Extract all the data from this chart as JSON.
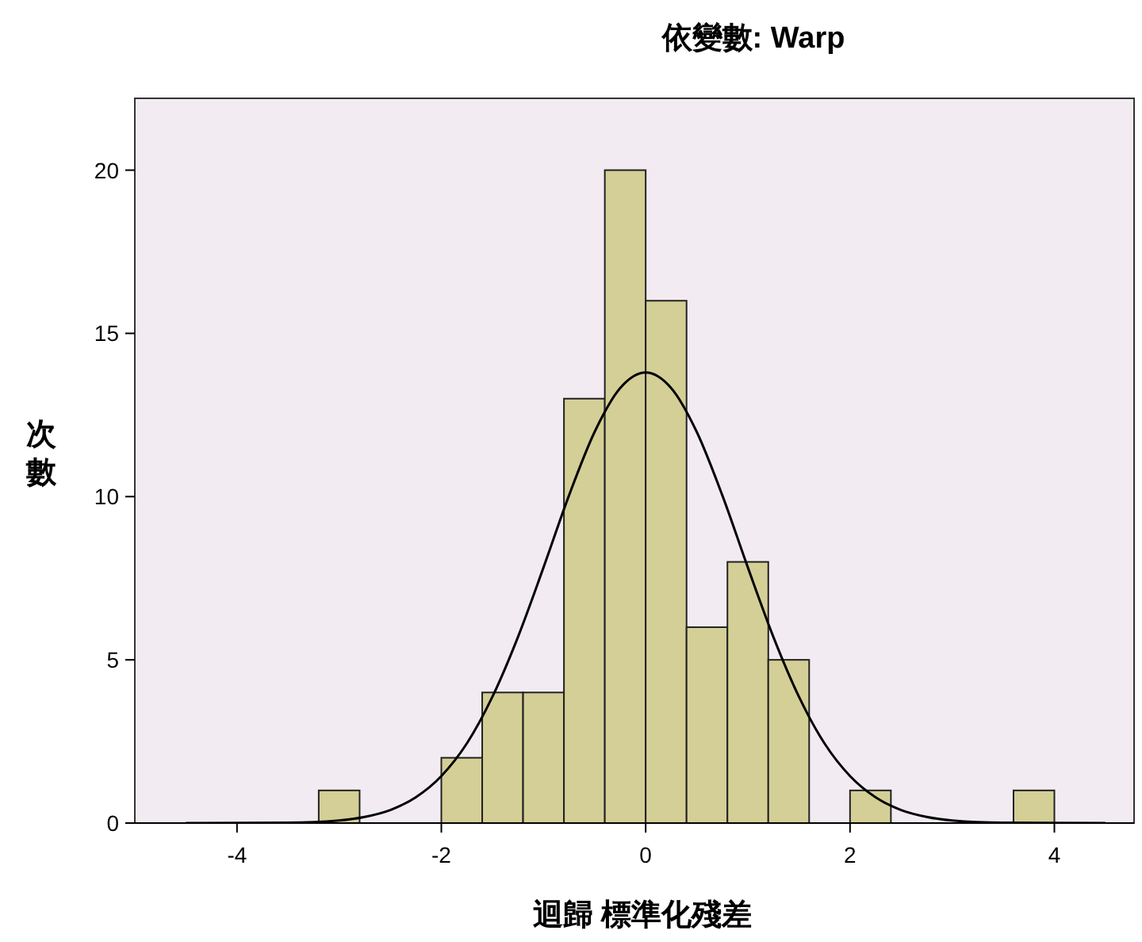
{
  "chart_data": {
    "type": "histogram",
    "title": "依變數: Warp",
    "xlabel": "迴歸 標準化殘差",
    "ylabel": "次數",
    "bins": [
      -3.2,
      -2.8,
      -2.4,
      -2.0,
      -1.6,
      -1.2,
      -0.8,
      -0.4,
      0,
      0.4,
      0.8,
      1.2,
      1.6,
      2.0,
      2.4,
      2.8,
      3.2,
      3.6,
      4.0
    ],
    "values": [
      1,
      0,
      0,
      2,
      4,
      4,
      13,
      20,
      16,
      6,
      8,
      5,
      0,
      1,
      0,
      0,
      0,
      1
    ],
    "color": "#d4cf96",
    "series": [
      {
        "type": "line",
        "color": "#000000",
        "x": [
          -4.5,
          -3.5,
          -3,
          -2.75,
          -2.5,
          -2.25,
          -2,
          -1.75,
          -1.5,
          -1.25,
          -1,
          -0.75,
          -0.5,
          -0.25,
          0,
          0.25,
          0.5,
          0.75,
          1,
          1.25,
          1.5,
          1.75,
          2,
          2.25,
          2.5,
          2.75,
          3,
          3.5,
          4.5
        ],
        "values": [
          0,
          0.01,
          0.08,
          0.19,
          0.4,
          0.79,
          1.44,
          2.44,
          3.87,
          5.7,
          7.83,
          10.04,
          11.98,
          13.32,
          13.8,
          13.32,
          11.98,
          10.04,
          7.83,
          5.7,
          3.87,
          2.44,
          1.44,
          0.79,
          0.4,
          0.19,
          0.08,
          0.01,
          0
        ]
      }
    ],
    "xlim": [
      -5,
      4.78
    ],
    "xticks": [
      -4,
      -2,
      0,
      2,
      4
    ],
    "ylim": [
      0,
      22.2
    ],
    "yticks": [
      0,
      5,
      10,
      15,
      20
    ]
  }
}
